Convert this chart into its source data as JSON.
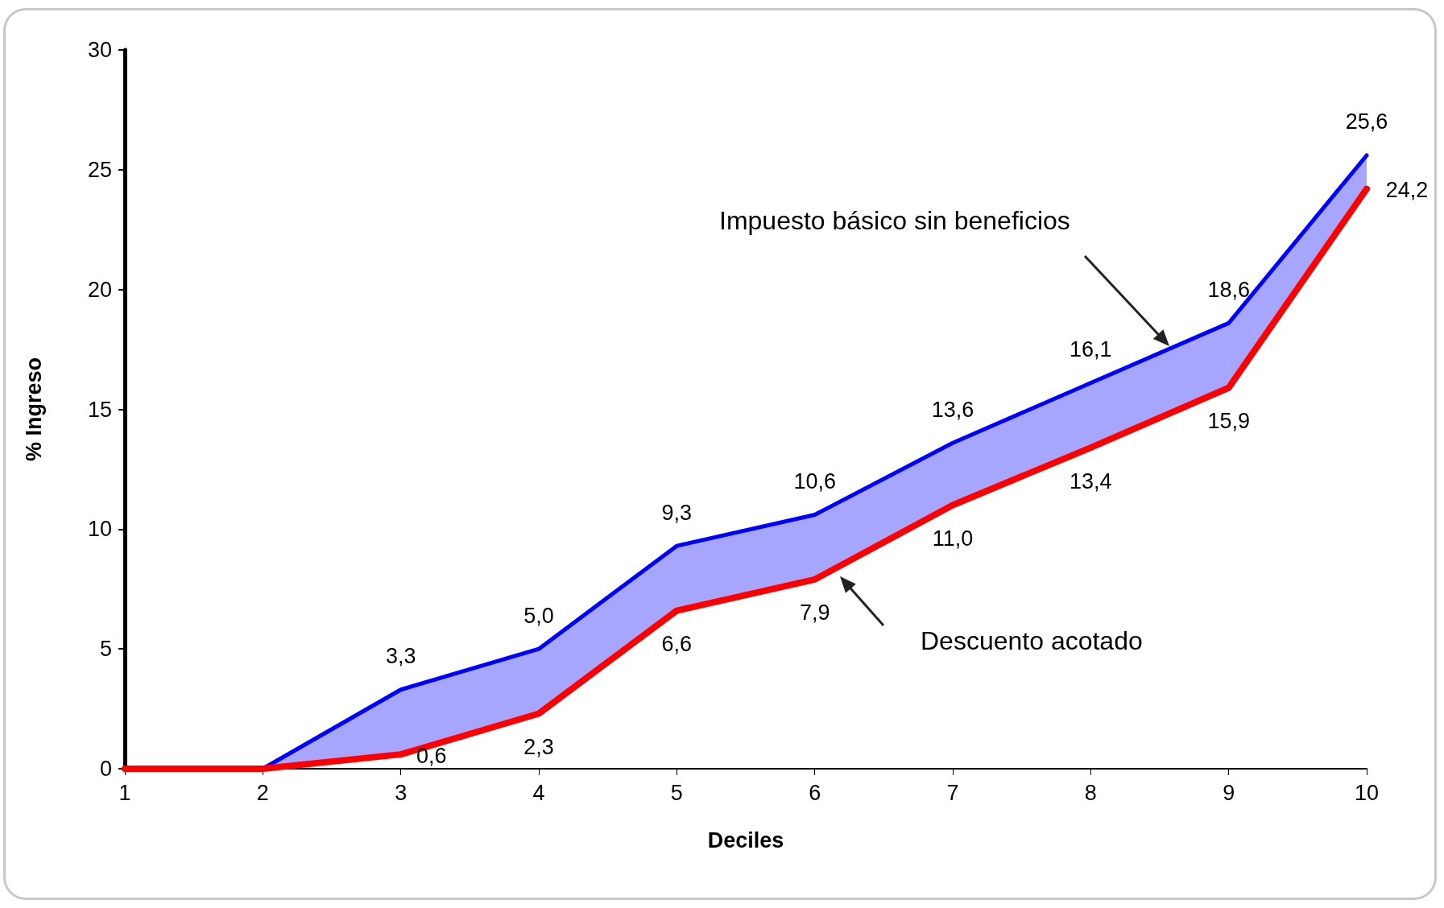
{
  "chart_data": {
    "type": "line",
    "xlabel": "Deciles",
    "ylabel": "% Ingreso",
    "x": [
      1,
      2,
      3,
      4,
      5,
      6,
      7,
      8,
      9,
      10
    ],
    "xlim": [
      1,
      10
    ],
    "xticks": [
      1,
      2,
      3,
      4,
      5,
      6,
      7,
      8,
      9,
      10
    ],
    "ylim": [
      0,
      30
    ],
    "yticks": [
      0,
      5,
      10,
      15,
      20,
      25,
      30
    ],
    "marker": "none",
    "line_style": "solid",
    "series": [
      {
        "color": "#0000ff",
        "values": [
          0,
          0,
          3.3,
          5.0,
          9.3,
          10.6,
          13.6,
          16.1,
          18.6,
          25.6
        ],
        "value_labels": [
          null,
          null,
          "3,3",
          "5,0",
          "9,3",
          "10,6",
          "13,6",
          "16,1",
          "18,6",
          "25,6"
        ],
        "lower": [
          0,
          0,
          0.6,
          2.3,
          6.6,
          7.9,
          11.0,
          13.4,
          15.9,
          24.2
        ],
        "upper": [
          0,
          0,
          3.3,
          5.0,
          9.3,
          10.6,
          13.6,
          16.1,
          18.6,
          25.6
        ]
      },
      {
        "color": "#ff0000",
        "values": [
          0,
          0,
          0.6,
          2.3,
          6.6,
          7.9,
          11.0,
          13.4,
          15.9,
          24.2
        ],
        "value_labels": [
          null,
          null,
          "0,6",
          "2,3",
          "6,6",
          "7,9",
          "11,0",
          "13,4",
          "15,9",
          "24,2"
        ]
      }
    ],
    "annotations": [
      "Impuesto básico sin beneficios",
      "Descuento acotado"
    ]
  }
}
